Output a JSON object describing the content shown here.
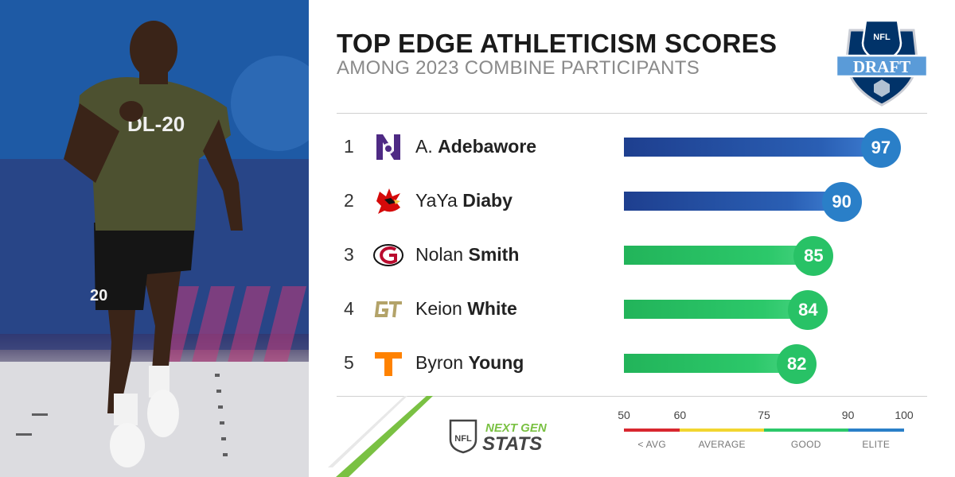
{
  "header": {
    "title": "TOP EDGE ATHLETICISM SCORES",
    "subtitle": "AMONG 2023 COMBINE PARTICIPANTS"
  },
  "branding": {
    "draft_logo_text": "DRAFT",
    "nfl_logo_text": "NFL",
    "ngs_line1": "NEXT GEN",
    "ngs_line2": "STATS",
    "jersey_text": "DL-20",
    "shorts_number": "20"
  },
  "chart_data": {
    "type": "bar",
    "orientation": "horizontal",
    "title": "TOP EDGE ATHLETICISM SCORES",
    "subtitle": "AMONG 2023 COMBINE PARTICIPANTS",
    "xlim": [
      50,
      100
    ],
    "rows": [
      {
        "rank": "1",
        "first": "A.",
        "last": "Adebawore",
        "school_icon": "northwestern-logo-icon",
        "value": 97,
        "tier": "elite"
      },
      {
        "rank": "2",
        "first": "YaYa",
        "last": "Diaby",
        "school_icon": "louisville-logo-icon",
        "value": 90,
        "tier": "elite"
      },
      {
        "rank": "3",
        "first": "Nolan",
        "last": "Smith",
        "school_icon": "georgia-logo-icon",
        "value": 85,
        "tier": "good"
      },
      {
        "rank": "4",
        "first": "Keion",
        "last": "White",
        "school_icon": "georgia-tech-logo-icon",
        "value": 84,
        "tier": "good"
      },
      {
        "rank": "5",
        "first": "Byron",
        "last": "Young",
        "school_icon": "tennessee-logo-icon",
        "value": 82,
        "tier": "good"
      }
    ],
    "scale": {
      "ticks": [
        50,
        60,
        75,
        90,
        100
      ],
      "tick_labels": [
        "50",
        "60",
        "75",
        "90",
        "100"
      ],
      "segments": [
        {
          "label": "< AVG",
          "from": 50,
          "to": 60,
          "color": "#d8272f"
        },
        {
          "label": "AVERAGE",
          "from": 60,
          "to": 75,
          "color": "#f2d630"
        },
        {
          "label": "GOOD",
          "from": 75,
          "to": 90,
          "color": "#2cc86a"
        },
        {
          "label": "ELITE",
          "from": 90,
          "to": 100,
          "color": "#2a7fc8"
        }
      ]
    }
  },
  "colors": {
    "elite": "#2a7fc8",
    "good": "#28c266",
    "nfl_navy": "#013369",
    "nfl_red": "#d50a0a",
    "ngs_green": "#7ac143"
  }
}
